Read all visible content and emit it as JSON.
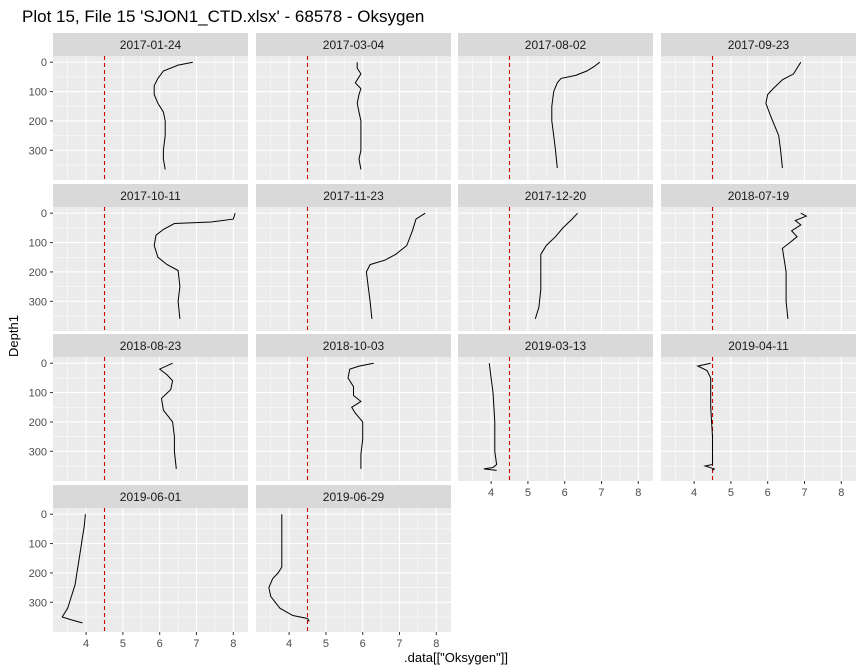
{
  "chart_data": {
    "type": "line",
    "title": "Plot 15, File 15 'SJON1_CTD.xlsx' - 68578  -  Oksygen",
    "xlabel": ".data[[\"Oksygen\"]]",
    "ylabel": "Depth1",
    "facet_layout": {
      "ncol": 4,
      "nrow": 4
    },
    "y_reversed": true,
    "ylim": [
      0,
      380
    ],
    "xlim": [
      3.1,
      8.4
    ],
    "xticks": [
      4,
      5,
      6,
      7,
      8
    ],
    "yticks": [
      0,
      100,
      200,
      300
    ],
    "reference_line": {
      "x": 4.5,
      "color": "#cc0000",
      "style": "dashed"
    },
    "panel_background": "#ebebeb",
    "strip_background": "#d9d9d9",
    "grid": true,
    "panels": [
      {
        "label": "2017-01-24",
        "profile": [
          [
            6.9,
            0
          ],
          [
            6.5,
            10
          ],
          [
            6.1,
            30
          ],
          [
            5.95,
            55
          ],
          [
            5.85,
            80
          ],
          [
            5.85,
            110
          ],
          [
            5.95,
            140
          ],
          [
            6.1,
            170
          ],
          [
            6.15,
            200
          ],
          [
            6.15,
            250
          ],
          [
            6.1,
            300
          ],
          [
            6.1,
            330
          ],
          [
            6.15,
            365
          ]
        ]
      },
      {
        "label": "2017-03-04",
        "profile": [
          [
            5.85,
            0
          ],
          [
            5.85,
            20
          ],
          [
            5.95,
            40
          ],
          [
            5.8,
            70
          ],
          [
            5.95,
            90
          ],
          [
            5.9,
            110
          ],
          [
            5.85,
            140
          ],
          [
            5.9,
            170
          ],
          [
            5.95,
            200
          ],
          [
            5.95,
            250
          ],
          [
            5.95,
            300
          ],
          [
            5.9,
            330
          ],
          [
            5.95,
            365
          ]
        ]
      },
      {
        "label": "2017-08-02",
        "profile": [
          [
            6.95,
            0
          ],
          [
            6.8,
            15
          ],
          [
            6.6,
            30
          ],
          [
            6.3,
            45
          ],
          [
            5.9,
            55
          ],
          [
            5.8,
            70
          ],
          [
            5.7,
            100
          ],
          [
            5.65,
            150
          ],
          [
            5.65,
            200
          ],
          [
            5.7,
            250
          ],
          [
            5.75,
            300
          ],
          [
            5.8,
            360
          ]
        ]
      },
      {
        "label": "2017-09-23",
        "profile": [
          [
            6.9,
            0
          ],
          [
            6.8,
            20
          ],
          [
            6.7,
            40
          ],
          [
            6.4,
            60
          ],
          [
            6.15,
            90
          ],
          [
            6.0,
            110
          ],
          [
            5.95,
            140
          ],
          [
            6.1,
            190
          ],
          [
            6.2,
            220
          ],
          [
            6.3,
            250
          ],
          [
            6.35,
            300
          ],
          [
            6.4,
            360
          ]
        ]
      },
      {
        "label": "2017-10-11",
        "profile": [
          [
            8.05,
            0
          ],
          [
            8.0,
            20
          ],
          [
            7.4,
            30
          ],
          [
            6.4,
            35
          ],
          [
            6.1,
            55
          ],
          [
            5.9,
            75
          ],
          [
            5.85,
            110
          ],
          [
            5.95,
            150
          ],
          [
            6.2,
            175
          ],
          [
            6.5,
            195
          ],
          [
            6.55,
            250
          ],
          [
            6.5,
            300
          ],
          [
            6.55,
            360
          ]
        ]
      },
      {
        "label": "2017-11-23",
        "profile": [
          [
            7.7,
            0
          ],
          [
            7.45,
            20
          ],
          [
            7.35,
            60
          ],
          [
            7.2,
            110
          ],
          [
            6.9,
            140
          ],
          [
            6.6,
            160
          ],
          [
            6.2,
            175
          ],
          [
            6.1,
            200
          ],
          [
            6.15,
            250
          ],
          [
            6.2,
            300
          ],
          [
            6.25,
            360
          ]
        ]
      },
      {
        "label": "2017-12-20",
        "profile": [
          [
            6.35,
            0
          ],
          [
            6.2,
            20
          ],
          [
            5.95,
            50
          ],
          [
            5.75,
            80
          ],
          [
            5.5,
            110
          ],
          [
            5.35,
            140
          ],
          [
            5.35,
            200
          ],
          [
            5.35,
            260
          ],
          [
            5.3,
            320
          ],
          [
            5.2,
            360
          ]
        ]
      },
      {
        "label": "2018-07-19",
        "profile": [
          [
            6.9,
            0
          ],
          [
            7.05,
            10
          ],
          [
            6.75,
            25
          ],
          [
            6.9,
            40
          ],
          [
            6.65,
            60
          ],
          [
            6.8,
            80
          ],
          [
            6.6,
            100
          ],
          [
            6.4,
            120
          ],
          [
            6.45,
            160
          ],
          [
            6.5,
            200
          ],
          [
            6.5,
            300
          ],
          [
            6.55,
            360
          ]
        ]
      },
      {
        "label": "2018-08-23",
        "profile": [
          [
            6.35,
            0
          ],
          [
            6.0,
            20
          ],
          [
            6.2,
            40
          ],
          [
            6.35,
            60
          ],
          [
            6.3,
            90
          ],
          [
            6.05,
            120
          ],
          [
            6.1,
            160
          ],
          [
            6.35,
            200
          ],
          [
            6.4,
            250
          ],
          [
            6.4,
            300
          ],
          [
            6.45,
            360
          ]
        ]
      },
      {
        "label": "2018-10-03",
        "profile": [
          [
            6.3,
            0
          ],
          [
            5.9,
            10
          ],
          [
            5.65,
            20
          ],
          [
            5.6,
            50
          ],
          [
            5.75,
            80
          ],
          [
            5.75,
            110
          ],
          [
            5.95,
            130
          ],
          [
            5.7,
            150
          ],
          [
            5.8,
            170
          ],
          [
            6.0,
            200
          ],
          [
            6.0,
            260
          ],
          [
            5.95,
            310
          ],
          [
            5.95,
            360
          ]
        ]
      },
      {
        "label": "2019-03-13",
        "profile": [
          [
            3.95,
            0
          ],
          [
            4.0,
            50
          ],
          [
            4.05,
            100
          ],
          [
            4.1,
            200
          ],
          [
            4.1,
            300
          ],
          [
            4.15,
            345
          ],
          [
            4.05,
            355
          ],
          [
            3.8,
            360
          ],
          [
            4.15,
            365
          ]
        ]
      },
      {
        "label": "2019-04-11",
        "profile": [
          [
            4.45,
            0
          ],
          [
            4.1,
            10
          ],
          [
            4.35,
            25
          ],
          [
            4.45,
            50
          ],
          [
            4.45,
            150
          ],
          [
            4.5,
            250
          ],
          [
            4.5,
            330
          ],
          [
            4.5,
            345
          ],
          [
            4.3,
            350
          ],
          [
            4.55,
            360
          ],
          [
            4.5,
            365
          ]
        ]
      },
      {
        "label": "2019-06-01",
        "profile": [
          [
            3.98,
            0
          ],
          [
            3.95,
            40
          ],
          [
            3.9,
            80
          ],
          [
            3.85,
            120
          ],
          [
            3.8,
            160
          ],
          [
            3.75,
            200
          ],
          [
            3.7,
            240
          ],
          [
            3.6,
            280
          ],
          [
            3.5,
            320
          ],
          [
            3.35,
            350
          ],
          [
            3.6,
            360
          ],
          [
            3.9,
            370
          ]
        ]
      },
      {
        "label": "2019-06-29",
        "profile": [
          [
            3.8,
            0
          ],
          [
            3.8,
            50
          ],
          [
            3.8,
            100
          ],
          [
            3.8,
            150
          ],
          [
            3.8,
            180
          ],
          [
            3.7,
            200
          ],
          [
            3.55,
            220
          ],
          [
            3.45,
            250
          ],
          [
            3.5,
            280
          ],
          [
            3.75,
            320
          ],
          [
            4.1,
            345
          ],
          [
            4.5,
            355
          ],
          [
            4.55,
            365
          ]
        ]
      }
    ]
  }
}
